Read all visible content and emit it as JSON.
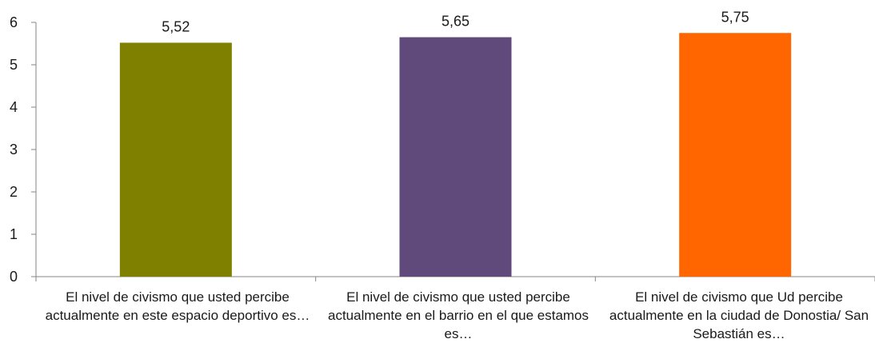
{
  "chart_data": {
    "type": "bar",
    "categories": [
      "El nivel de civismo que usted percibe actualmente en este espacio deportivo es…",
      "El nivel de civismo que usted percibe actualmente en el barrio en el que estamos es…",
      "El nivel de civismo que Ud percibe actualmente en la ciudad de Donostia/ San Sebastián es…"
    ],
    "values": [
      5.52,
      5.65,
      5.75
    ],
    "data_labels": [
      "5,52",
      "5,65",
      "5,75"
    ],
    "bar_colors": [
      "#808000",
      "#604a7b",
      "#ff6600"
    ],
    "ylim": [
      0,
      6
    ],
    "yticks": [
      "0",
      "1",
      "2",
      "3",
      "4",
      "5",
      "6"
    ],
    "title": "",
    "xlabel": "",
    "ylabel": "",
    "grid": false,
    "legend": "none"
  }
}
